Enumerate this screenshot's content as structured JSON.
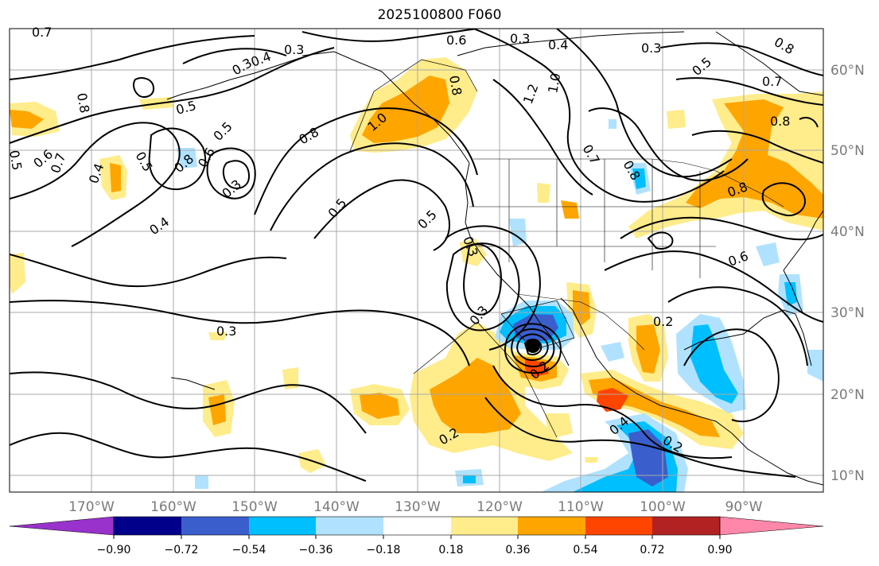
{
  "title": "2025100800 F060",
  "lon_labels": [
    "170°W",
    "160°W",
    "150°W",
    "140°W",
    "130°W",
    "120°W",
    "110°W",
    "100°W",
    "90°W"
  ],
  "lat_labels": [
    "60°N",
    "50°N",
    "40°N",
    "30°N",
    "20°N",
    "10°N"
  ],
  "colorbar": {
    "ticks": [
      "−0.90",
      "−0.72",
      "−0.54",
      "−0.36",
      "−0.18",
      "0.18",
      "0.36",
      "0.54",
      "0.72",
      "0.90"
    ],
    "colors": [
      "#9932cc",
      "#00008b",
      "#3a5fcd",
      "#00bfff",
      "#b0e2ff",
      "#ffffff",
      "#ffec8b",
      "#ffa500",
      "#ff4500",
      "#b22222",
      "#ff88aa"
    ]
  },
  "contour_labels": [
    "0.7",
    "0.3",
    "0.4",
    "0.3",
    "0.6",
    "0.3",
    "0.4",
    "0.3",
    "0.5",
    "0.8",
    "0.7",
    "0.8",
    "0.5",
    "0.8",
    "0.5",
    "0.6",
    "0.7",
    "0.8",
    "0.5",
    "0.5",
    "0.3",
    "0.4",
    "0.8",
    "1.0",
    "0.5",
    "0.5",
    "0.3",
    "0.4",
    "0.3",
    "0.3",
    "0.2",
    "0.2",
    "0.2",
    "0.4",
    "0.2",
    "0.8",
    "0.6",
    "1.2",
    "1.0",
    "0.7",
    "0.8",
    "0.6",
    "0.8"
  ],
  "fill_colors": {
    "cold1": "#b0e2ff",
    "cold2": "#00bfff",
    "cold3": "#3a5fcd",
    "warm1": "#ffec8b",
    "warm2": "#ffa500",
    "warm3": "#ff4500"
  }
}
